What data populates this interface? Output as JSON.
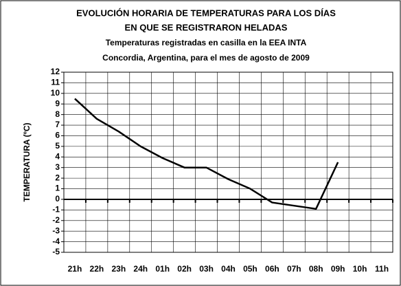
{
  "chart_data": {
    "type": "line",
    "title": [
      "EVOLUCIÓN HORARIA DE TEMPERATURAS PARA LOS DÍAS",
      "EN QUE SE REGISTRARON HELADAS"
    ],
    "subtitle": [
      "Temperaturas registradas en casilla en la EEA INTA",
      "Concordia, Argentina, para el mes de agosto de 2009"
    ],
    "y_label": "TEMPERATURA (ºC)",
    "categories": [
      "21h",
      "22h",
      "23h",
      "24h",
      "01h",
      "02h",
      "03h",
      "04h",
      "05h",
      "06h",
      "07h",
      "08h",
      "09h",
      "10h",
      "11h"
    ],
    "series": [
      {
        "name": "Temperatura",
        "color": "#000000",
        "values": [
          9.5,
          7.6,
          6.4,
          5.0,
          3.9,
          3.0,
          3.0,
          1.9,
          1.0,
          -0.3,
          -0.6,
          -0.9,
          3.5,
          null,
          null
        ]
      }
    ],
    "ylim": [
      -5,
      12
    ],
    "yticks": [
      -5,
      -4,
      -3,
      -2,
      -1,
      0,
      1,
      2,
      3,
      4,
      5,
      6,
      7,
      8,
      9,
      10,
      11,
      12
    ],
    "grid": true,
    "legend": false
  }
}
